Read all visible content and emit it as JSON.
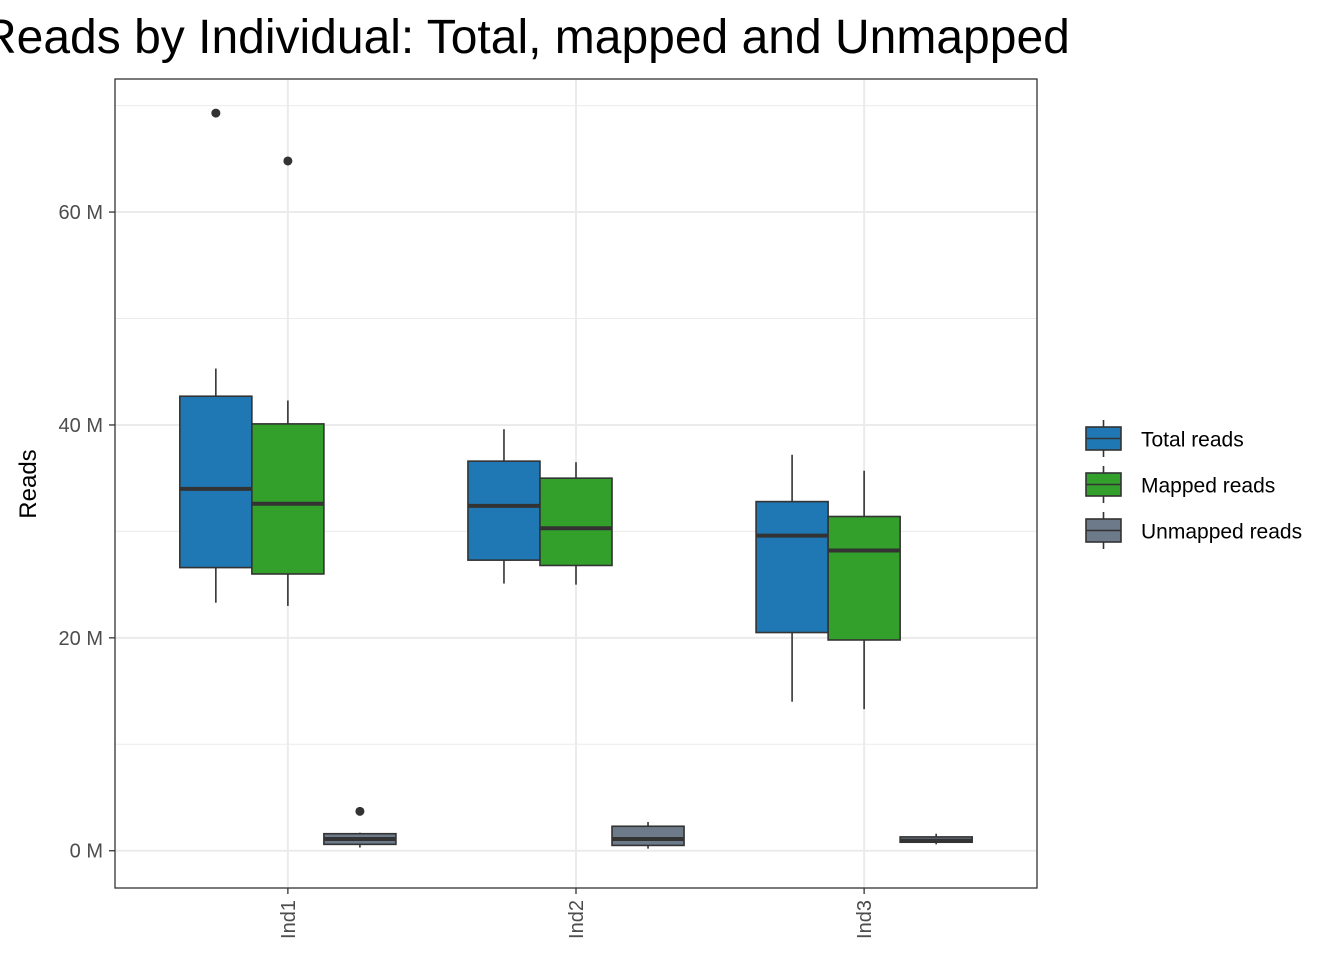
{
  "chart_data": {
    "type": "boxplot",
    "title": "Reads by Individual: Total, mapped and Unmapped",
    "xlabel": "",
    "ylabel": "Reads",
    "ylim": [
      -3.5,
      72.5
    ],
    "y_ticks": [
      0,
      20,
      40,
      60
    ],
    "y_tick_labels": [
      "0 M",
      "20 M",
      "40 M",
      "60 M"
    ],
    "y_unit": "M",
    "grid": true,
    "legend_position": "right",
    "categories": [
      "Ind1",
      "Ind2",
      "Ind3"
    ],
    "series": [
      {
        "name": "Total reads",
        "color": "#1f78b4",
        "boxes": [
          {
            "category": "Ind1",
            "whisker_low": 23.3,
            "q1": 26.6,
            "median": 34.0,
            "q3": 42.7,
            "whisker_high": 45.3,
            "outliers": [
              69.3
            ]
          },
          {
            "category": "Ind2",
            "whisker_low": 25.1,
            "q1": 27.3,
            "median": 32.4,
            "q3": 36.6,
            "whisker_high": 39.6,
            "outliers": []
          },
          {
            "category": "Ind3",
            "whisker_low": 14.0,
            "q1": 20.5,
            "median": 29.6,
            "q3": 32.8,
            "whisker_high": 37.2,
            "outliers": []
          }
        ]
      },
      {
        "name": "Mapped reads",
        "color": "#33a02c",
        "boxes": [
          {
            "category": "Ind1",
            "whisker_low": 23.0,
            "q1": 26.0,
            "median": 32.6,
            "q3": 40.1,
            "whisker_high": 42.3,
            "outliers": [
              64.8
            ]
          },
          {
            "category": "Ind2",
            "whisker_low": 25.0,
            "q1": 26.8,
            "median": 30.3,
            "q3": 35.0,
            "whisker_high": 36.5,
            "outliers": []
          },
          {
            "category": "Ind3",
            "whisker_low": 13.3,
            "q1": 19.8,
            "median": 28.2,
            "q3": 31.4,
            "whisker_high": 35.7,
            "outliers": []
          }
        ]
      },
      {
        "name": "Unmapped reads",
        "color": "#6c7a89",
        "boxes": [
          {
            "category": "Ind1",
            "whisker_low": 0.3,
            "q1": 0.6,
            "median": 1.1,
            "q3": 1.6,
            "whisker_high": 1.7,
            "outliers": [
              3.7
            ]
          },
          {
            "category": "Ind2",
            "whisker_low": 0.2,
            "q1": 0.5,
            "median": 1.1,
            "q3": 2.3,
            "whisker_high": 2.7,
            "outliers": []
          },
          {
            "category": "Ind3",
            "whisker_low": 0.6,
            "q1": 0.8,
            "median": 0.95,
            "q3": 1.3,
            "whisker_high": 1.6,
            "outliers": []
          }
        ]
      }
    ]
  }
}
